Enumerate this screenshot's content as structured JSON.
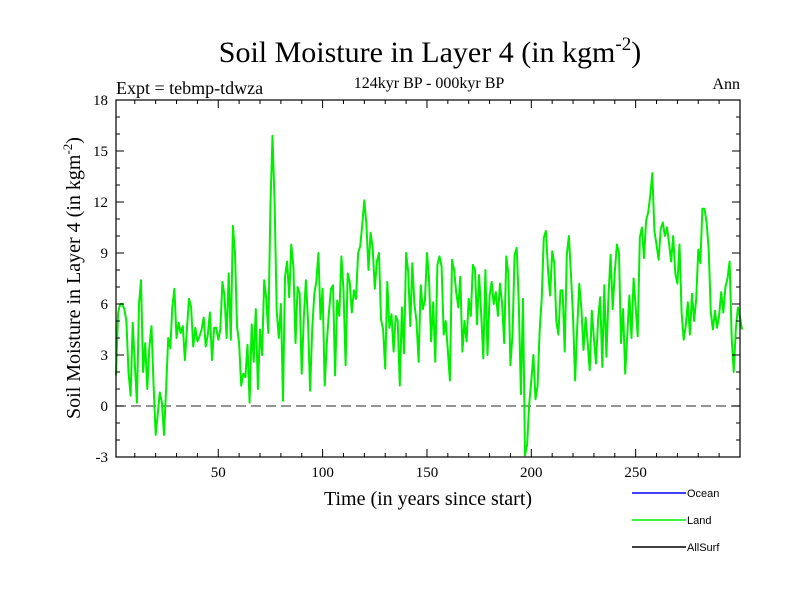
{
  "chart_data": {
    "type": "line",
    "title_main": "Soil Moisture in Layer 4 (in kgm",
    "title_sup": "-2",
    "title_close": ")",
    "subtitle": "124kyr BP - 000kyr BP",
    "expt_label": "Expt = tebmp-tdwza",
    "season_label": "Ann",
    "xlabel": "Time (in years since start)",
    "ylabel_main": "Soil Moisture in Layer 4 (in kgm",
    "ylabel_sup": "-2",
    "ylabel_close": ")",
    "xlim": [
      1,
      300
    ],
    "ylim": [
      -3,
      18
    ],
    "xticks": [
      50,
      100,
      150,
      200,
      250
    ],
    "yticks": [
      -3,
      0,
      3,
      6,
      9,
      12,
      15,
      18
    ],
    "zero_line": 0,
    "legend": [
      {
        "name": "Ocean",
        "color": "#0000ff"
      },
      {
        "name": "Land",
        "color": "#00ee00"
      },
      {
        "name": "AllSurf",
        "color": "#000000"
      }
    ],
    "series": [
      {
        "name": "Land",
        "color": "#00ee00",
        "x_start": 1,
        "x_step": 1,
        "values": [
          1.8,
          5.5,
          6.0,
          6.0,
          5.7,
          5.0,
          2.0,
          0.6,
          4.9,
          2.5,
          0.2,
          6.0,
          7.4,
          2.0,
          3.7,
          1.0,
          3.5,
          4.7,
          1.2,
          -1.7,
          -0.5,
          0.8,
          0.2,
          -1.7,
          1.0,
          4.0,
          3.4,
          5.8,
          6.9,
          4.0,
          4.9,
          4.3,
          4.7,
          2.7,
          4.6,
          6.3,
          5.8,
          3.5,
          4.6,
          3.8,
          4.1,
          4.5,
          5.2,
          3.5,
          4.2,
          5.5,
          2.7,
          4.6,
          4.6,
          3.9,
          4.5,
          7.3,
          6.5,
          4.0,
          7.8,
          3.9,
          10.6,
          9.0,
          4.7,
          3.7,
          1.2,
          1.9,
          1.7,
          3.6,
          0.2,
          4.8,
          2.6,
          5.7,
          1.0,
          4.5,
          3.0,
          7.4,
          6.3,
          4.3,
          11.7,
          15.9,
          12.0,
          5.6,
          4.0,
          6.0,
          0.3,
          7.6,
          8.5,
          6.4,
          9.5,
          8.2,
          3.7,
          7.0,
          6.6,
          1.9,
          5.2,
          7.4,
          5.0,
          0.9,
          4.5,
          6.6,
          7.3,
          9.0,
          5.1,
          6.9,
          1.2,
          3.7,
          5.5,
          6.9,
          7.1,
          1.8,
          6.2,
          5.3,
          8.8,
          6.8,
          2.4,
          7.8,
          7.3,
          5.5,
          6.8,
          6.3,
          9.0,
          9.4,
          10.7,
          12.1,
          10.7,
          8.0,
          10.2,
          9.3,
          6.9,
          8.5,
          9.0,
          5.1,
          4.5,
          2.2,
          7.3,
          4.6,
          5.4,
          3.2,
          5.3,
          5.0,
          1.2,
          5.8,
          3.1,
          9.0,
          7.9,
          4.7,
          8.4,
          6.0,
          5.0,
          2.6,
          7.1,
          5.7,
          6.2,
          9.0,
          7.5,
          3.8,
          6.1,
          2.6,
          8.3,
          8.8,
          8.2,
          4.2,
          5.0,
          3.3,
          1.5,
          8.6,
          8.0,
          6.7,
          5.8,
          7.6,
          3.2,
          5.0,
          3.8,
          6.3,
          5.3,
          8.3,
          8.0,
          4.8,
          7.7,
          5.4,
          2.8,
          8.0,
          3.0,
          6.5,
          7.3,
          6.0,
          6.7,
          5.3,
          7.2,
          6.0,
          3.7,
          8.8,
          7.8,
          2.4,
          4.2,
          8.9,
          9.3,
          6.0,
          0.7,
          6.3,
          -2.9,
          -2.3,
          0.1,
          1.5,
          3.0,
          0.4,
          1.2,
          4.5,
          6.3,
          9.9,
          10.3,
          8.0,
          6.5,
          9.1,
          8.4,
          5.0,
          4.2,
          6.8,
          6.8,
          3.2,
          8.9,
          10.0,
          7.7,
          5.3,
          1.5,
          4.6,
          7.2,
          5.7,
          3.3,
          5.2,
          3.7,
          2.1,
          5.6,
          4.0,
          2.5,
          5.1,
          6.4,
          2.3,
          7.1,
          2.9,
          6.5,
          8.9,
          5.7,
          7.9,
          9.5,
          9.0,
          3.7,
          5.7,
          1.9,
          4.2,
          6.5,
          4.0,
          7.5,
          5.8,
          4.1,
          9.9,
          10.5,
          8.7,
          10.9,
          11.4,
          12.4,
          13.7,
          10.3,
          9.5,
          8.6,
          10.4,
          10.8,
          10.0,
          10.5,
          9.6,
          8.5,
          10.0,
          7.8,
          7.2,
          9.5,
          5.5,
          3.9,
          4.7,
          6.1,
          4.2,
          6.6,
          5.0,
          6.3,
          9.2,
          8.4,
          11.6,
          11.6,
          10.8,
          9.2,
          5.5,
          4.5,
          5.6,
          4.6,
          5.3,
          6.7,
          5.5,
          7.0,
          7.5,
          8.5,
          4.0,
          2.0,
          4.5,
          5.8,
          5.2,
          4.5
        ]
      }
    ]
  }
}
